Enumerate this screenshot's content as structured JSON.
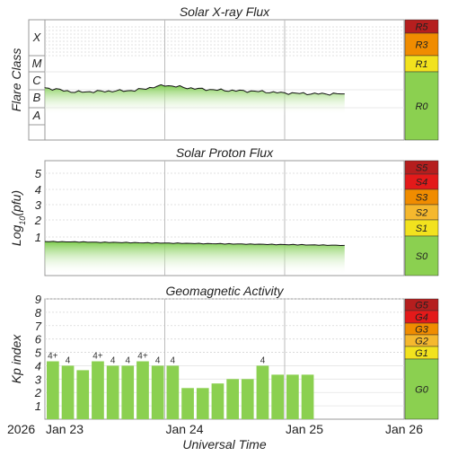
{
  "chart_data": [
    {
      "type": "line",
      "title": "Solar X-ray Flux",
      "ylabel": "Flare Class",
      "flare_classes": [
        "X",
        "M",
        "C",
        "B",
        "A"
      ],
      "x_start": "2026-01-23T00:00",
      "series": [
        {
          "x": [
            "2026-01-23T00:00",
            "2026-01-23T06:00",
            "2026-01-23T12:00",
            "2026-01-23T18:00",
            "2026-01-24T00:00",
            "2026-01-24T06:00",
            "2026-01-24T12:00",
            "2026-01-24T18:00",
            "2026-01-25T00:00",
            "2026-01-25T06:00",
            "2026-01-25T12:00"
          ],
          "values": [
            2.6,
            2.35,
            2.4,
            2.45,
            2.75,
            2.55,
            2.45,
            2.4,
            2.3,
            2.25,
            2.25
          ]
        }
      ],
      "scale": [
        {
          "label": "R5",
          "color": "#b51e1e"
        },
        {
          "label": "R3",
          "color": "#f08c00"
        },
        {
          "label": "R1",
          "color": "#f2e21e"
        },
        {
          "label": "R0",
          "color": "#8bd050"
        }
      ]
    },
    {
      "type": "line",
      "title": "Solar Proton Flux",
      "ylabel": "Log10(pfu)",
      "yticks": [
        "5",
        "4",
        "3",
        "2",
        "1"
      ],
      "x_start": "2026-01-23T00:00",
      "series": [
        {
          "x": [
            "2026-01-23T00:00",
            "2026-01-23T12:00",
            "2026-01-24T00:00",
            "2026-01-24T12:00",
            "2026-01-25T00:00",
            "2026-01-25T12:00"
          ],
          "values": [
            0.7,
            0.65,
            0.6,
            0.55,
            0.5,
            0.45
          ]
        }
      ],
      "scale": [
        {
          "label": "S5",
          "color": "#b51e1e"
        },
        {
          "label": "S4",
          "color": "#e31a1a"
        },
        {
          "label": "S3",
          "color": "#f08c00"
        },
        {
          "label": "S2",
          "color": "#f5b82e"
        },
        {
          "label": "S1",
          "color": "#f2e21e"
        },
        {
          "label": "S0",
          "color": "#8bd050"
        }
      ]
    },
    {
      "type": "bar",
      "title": "Geomagnetic Activity",
      "ylabel": "Kp index",
      "yticks": [
        "9",
        "8",
        "7",
        "6",
        "5",
        "4",
        "3",
        "2",
        "1"
      ],
      "ylim": [
        0,
        9
      ],
      "values": [
        4.33,
        4.0,
        3.67,
        4.33,
        4.0,
        4.0,
        4.33,
        4.0,
        4.0,
        2.33,
        2.33,
        2.67,
        3.0,
        3.0,
        4.0,
        3.33,
        3.33,
        3.33
      ],
      "labels": [
        "4+",
        "4",
        "",
        "4+",
        "4",
        "4",
        "4+",
        "4",
        "4",
        "",
        "",
        "",
        "",
        "",
        "4",
        "",
        "",
        ""
      ],
      "scale": [
        {
          "label": "G5",
          "color": "#b51e1e"
        },
        {
          "label": "G4",
          "color": "#e31a1a"
        },
        {
          "label": "G3",
          "color": "#f08c00"
        },
        {
          "label": "G2",
          "color": "#f5b82e"
        },
        {
          "label": "G1",
          "color": "#f2e21e"
        },
        {
          "label": "G0",
          "color": "#8bd050"
        }
      ]
    }
  ],
  "xaxis": {
    "year": "2026",
    "ticks": [
      "Jan 23",
      "Jan 24",
      "Jan 25",
      "Jan 26"
    ],
    "label": "Universal Time"
  }
}
